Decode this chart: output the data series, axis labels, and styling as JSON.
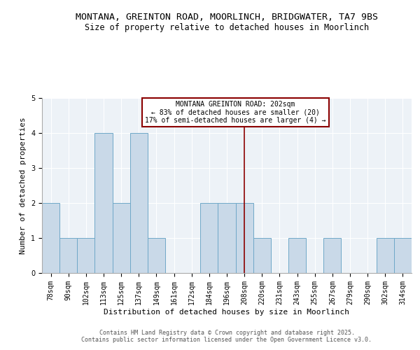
{
  "title": "MONTANA, GREINTON ROAD, MOORLINCH, BRIDGWATER, TA7 9BS",
  "subtitle": "Size of property relative to detached houses in Moorlinch",
  "xlabel": "Distribution of detached houses by size in Moorlinch",
  "ylabel": "Number of detached properties",
  "categories": [
    "78sqm",
    "90sqm",
    "102sqm",
    "113sqm",
    "125sqm",
    "137sqm",
    "149sqm",
    "161sqm",
    "172sqm",
    "184sqm",
    "196sqm",
    "208sqm",
    "220sqm",
    "231sqm",
    "243sqm",
    "255sqm",
    "267sqm",
    "279sqm",
    "290sqm",
    "302sqm",
    "314sqm"
  ],
  "values": [
    2,
    1,
    1,
    4,
    2,
    4,
    1,
    0,
    0,
    2,
    2,
    2,
    1,
    0,
    1,
    0,
    1,
    0,
    0,
    1,
    1
  ],
  "bar_color": "#c9d9e8",
  "bar_edge_color": "#6fa8c8",
  "property_line_index": 11,
  "property_line_color": "#8b0000",
  "annotation_text": "MONTANA GREINTON ROAD: 202sqm\n← 83% of detached houses are smaller (20)\n17% of semi-detached houses are larger (4) →",
  "annotation_box_color": "#8b0000",
  "annotation_bg": "#ffffff",
  "ylim": [
    0,
    5
  ],
  "yticks": [
    0,
    1,
    2,
    3,
    4,
    5
  ],
  "footer": "Contains HM Land Registry data © Crown copyright and database right 2025.\nContains public sector information licensed under the Open Government Licence v3.0.",
  "bg_color": "#edf2f7",
  "title_fontsize": 9.5,
  "subtitle_fontsize": 8.5,
  "xlabel_fontsize": 8,
  "ylabel_fontsize": 8,
  "tick_fontsize": 7,
  "footer_fontsize": 6,
  "annotation_fontsize": 7
}
